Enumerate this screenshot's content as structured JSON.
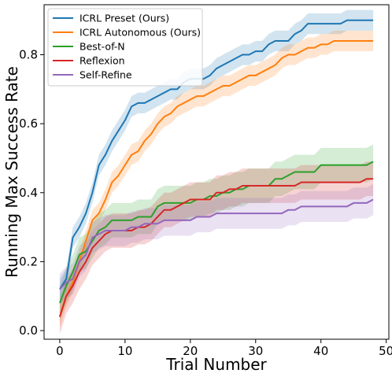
{
  "chart_data": {
    "type": "line",
    "xlabel": "Trial Number",
    "ylabel": "Running Max Success Rate",
    "xlim": [
      -2.4,
      50.4
    ],
    "ylim": [
      -0.025,
      0.945
    ],
    "xticks": [
      0,
      10,
      20,
      30,
      40,
      50
    ],
    "yticks": [
      0.0,
      0.2,
      0.4,
      0.6,
      0.8
    ],
    "ytick_labels": [
      "0.0",
      "0.2",
      "0.4",
      "0.6",
      "0.8"
    ],
    "grid": false,
    "legend_position": "top-left",
    "series": [
      {
        "name": "ICRL Preset (Ours)",
        "color": "#1f77b4",
        "x": [
          0,
          1,
          2,
          3,
          4,
          5,
          6,
          7,
          8,
          9,
          10,
          11,
          12,
          13,
          14,
          15,
          16,
          17,
          18,
          19,
          20,
          21,
          22,
          23,
          24,
          25,
          26,
          27,
          28,
          29,
          30,
          31,
          32,
          33,
          34,
          35,
          36,
          37,
          38,
          39,
          40,
          41,
          42,
          43,
          44,
          45,
          46,
          47,
          48
        ],
        "y": [
          0.12,
          0.15,
          0.27,
          0.3,
          0.34,
          0.4,
          0.48,
          0.51,
          0.55,
          0.58,
          0.61,
          0.65,
          0.66,
          0.66,
          0.67,
          0.68,
          0.69,
          0.7,
          0.7,
          0.72,
          0.73,
          0.73,
          0.73,
          0.74,
          0.76,
          0.77,
          0.78,
          0.79,
          0.8,
          0.8,
          0.81,
          0.81,
          0.83,
          0.84,
          0.84,
          0.84,
          0.86,
          0.87,
          0.89,
          0.89,
          0.89,
          0.89,
          0.89,
          0.89,
          0.9,
          0.9,
          0.9,
          0.9,
          0.9
        ],
        "band": 0.03
      },
      {
        "name": "ICRL Autonomous (Ours)",
        "color": "#ff7f0e",
        "x": [
          0,
          1,
          2,
          3,
          4,
          5,
          6,
          7,
          8,
          9,
          10,
          11,
          12,
          13,
          14,
          15,
          16,
          17,
          18,
          19,
          20,
          21,
          22,
          23,
          24,
          25,
          26,
          27,
          28,
          29,
          30,
          31,
          32,
          33,
          34,
          35,
          36,
          37,
          38,
          39,
          40,
          41,
          42,
          43,
          44,
          45,
          46,
          47,
          48
        ],
        "y": [
          0.04,
          0.1,
          0.14,
          0.2,
          0.26,
          0.32,
          0.34,
          0.38,
          0.43,
          0.45,
          0.48,
          0.51,
          0.52,
          0.55,
          0.57,
          0.6,
          0.62,
          0.63,
          0.65,
          0.66,
          0.67,
          0.68,
          0.68,
          0.69,
          0.7,
          0.71,
          0.71,
          0.72,
          0.73,
          0.74,
          0.74,
          0.75,
          0.76,
          0.77,
          0.79,
          0.8,
          0.8,
          0.81,
          0.82,
          0.82,
          0.83,
          0.83,
          0.84,
          0.84,
          0.84,
          0.84,
          0.84,
          0.84,
          0.84
        ],
        "band": 0.03
      },
      {
        "name": "Best-of-N",
        "color": "#2ca02c",
        "x": [
          0,
          1,
          2,
          3,
          4,
          5,
          6,
          7,
          8,
          9,
          10,
          11,
          12,
          13,
          14,
          15,
          16,
          17,
          18,
          19,
          20,
          21,
          22,
          23,
          24,
          25,
          26,
          27,
          28,
          29,
          30,
          31,
          32,
          33,
          34,
          35,
          36,
          37,
          38,
          39,
          40,
          41,
          42,
          43,
          44,
          45,
          46,
          47,
          48
        ],
        "y": [
          0.08,
          0.13,
          0.17,
          0.22,
          0.23,
          0.26,
          0.29,
          0.3,
          0.32,
          0.32,
          0.32,
          0.32,
          0.33,
          0.33,
          0.33,
          0.36,
          0.37,
          0.37,
          0.37,
          0.37,
          0.37,
          0.38,
          0.38,
          0.39,
          0.39,
          0.4,
          0.4,
          0.41,
          0.41,
          0.42,
          0.42,
          0.42,
          0.42,
          0.44,
          0.44,
          0.45,
          0.46,
          0.46,
          0.46,
          0.46,
          0.48,
          0.48,
          0.48,
          0.48,
          0.48,
          0.48,
          0.48,
          0.48,
          0.49
        ],
        "band": 0.05
      },
      {
        "name": "Reflexion",
        "color": "#d62728",
        "x": [
          0,
          1,
          2,
          3,
          4,
          5,
          6,
          7,
          8,
          9,
          10,
          11,
          12,
          13,
          14,
          15,
          16,
          17,
          18,
          19,
          20,
          21,
          22,
          23,
          24,
          25,
          26,
          27,
          28,
          29,
          30,
          31,
          32,
          33,
          34,
          35,
          36,
          37,
          38,
          39,
          40,
          41,
          42,
          43,
          44,
          45,
          46,
          47,
          48
        ],
        "y": [
          0.04,
          0.1,
          0.13,
          0.17,
          0.2,
          0.24,
          0.26,
          0.28,
          0.29,
          0.29,
          0.29,
          0.29,
          0.3,
          0.3,
          0.31,
          0.33,
          0.35,
          0.35,
          0.36,
          0.37,
          0.38,
          0.38,
          0.38,
          0.38,
          0.4,
          0.4,
          0.41,
          0.41,
          0.42,
          0.42,
          0.42,
          0.42,
          0.42,
          0.42,
          0.42,
          0.42,
          0.42,
          0.43,
          0.43,
          0.43,
          0.43,
          0.43,
          0.43,
          0.43,
          0.43,
          0.43,
          0.43,
          0.44,
          0.44
        ],
        "band": 0.05
      },
      {
        "name": "Self-Refine",
        "color": "#9467bd",
        "x": [
          0,
          1,
          2,
          3,
          4,
          5,
          6,
          7,
          8,
          9,
          10,
          11,
          12,
          13,
          14,
          15,
          16,
          17,
          18,
          19,
          20,
          21,
          22,
          23,
          24,
          25,
          26,
          27,
          28,
          29,
          30,
          31,
          32,
          33,
          34,
          35,
          36,
          37,
          38,
          39,
          40,
          41,
          42,
          43,
          44,
          45,
          46,
          47,
          48
        ],
        "y": [
          0.12,
          0.14,
          0.15,
          0.2,
          0.22,
          0.27,
          0.28,
          0.29,
          0.29,
          0.29,
          0.29,
          0.3,
          0.3,
          0.31,
          0.31,
          0.31,
          0.32,
          0.32,
          0.32,
          0.32,
          0.32,
          0.33,
          0.33,
          0.33,
          0.34,
          0.34,
          0.34,
          0.34,
          0.34,
          0.34,
          0.34,
          0.34,
          0.34,
          0.34,
          0.34,
          0.35,
          0.35,
          0.36,
          0.36,
          0.36,
          0.36,
          0.36,
          0.36,
          0.36,
          0.36,
          0.37,
          0.37,
          0.37,
          0.38
        ],
        "band": 0.045
      }
    ]
  }
}
